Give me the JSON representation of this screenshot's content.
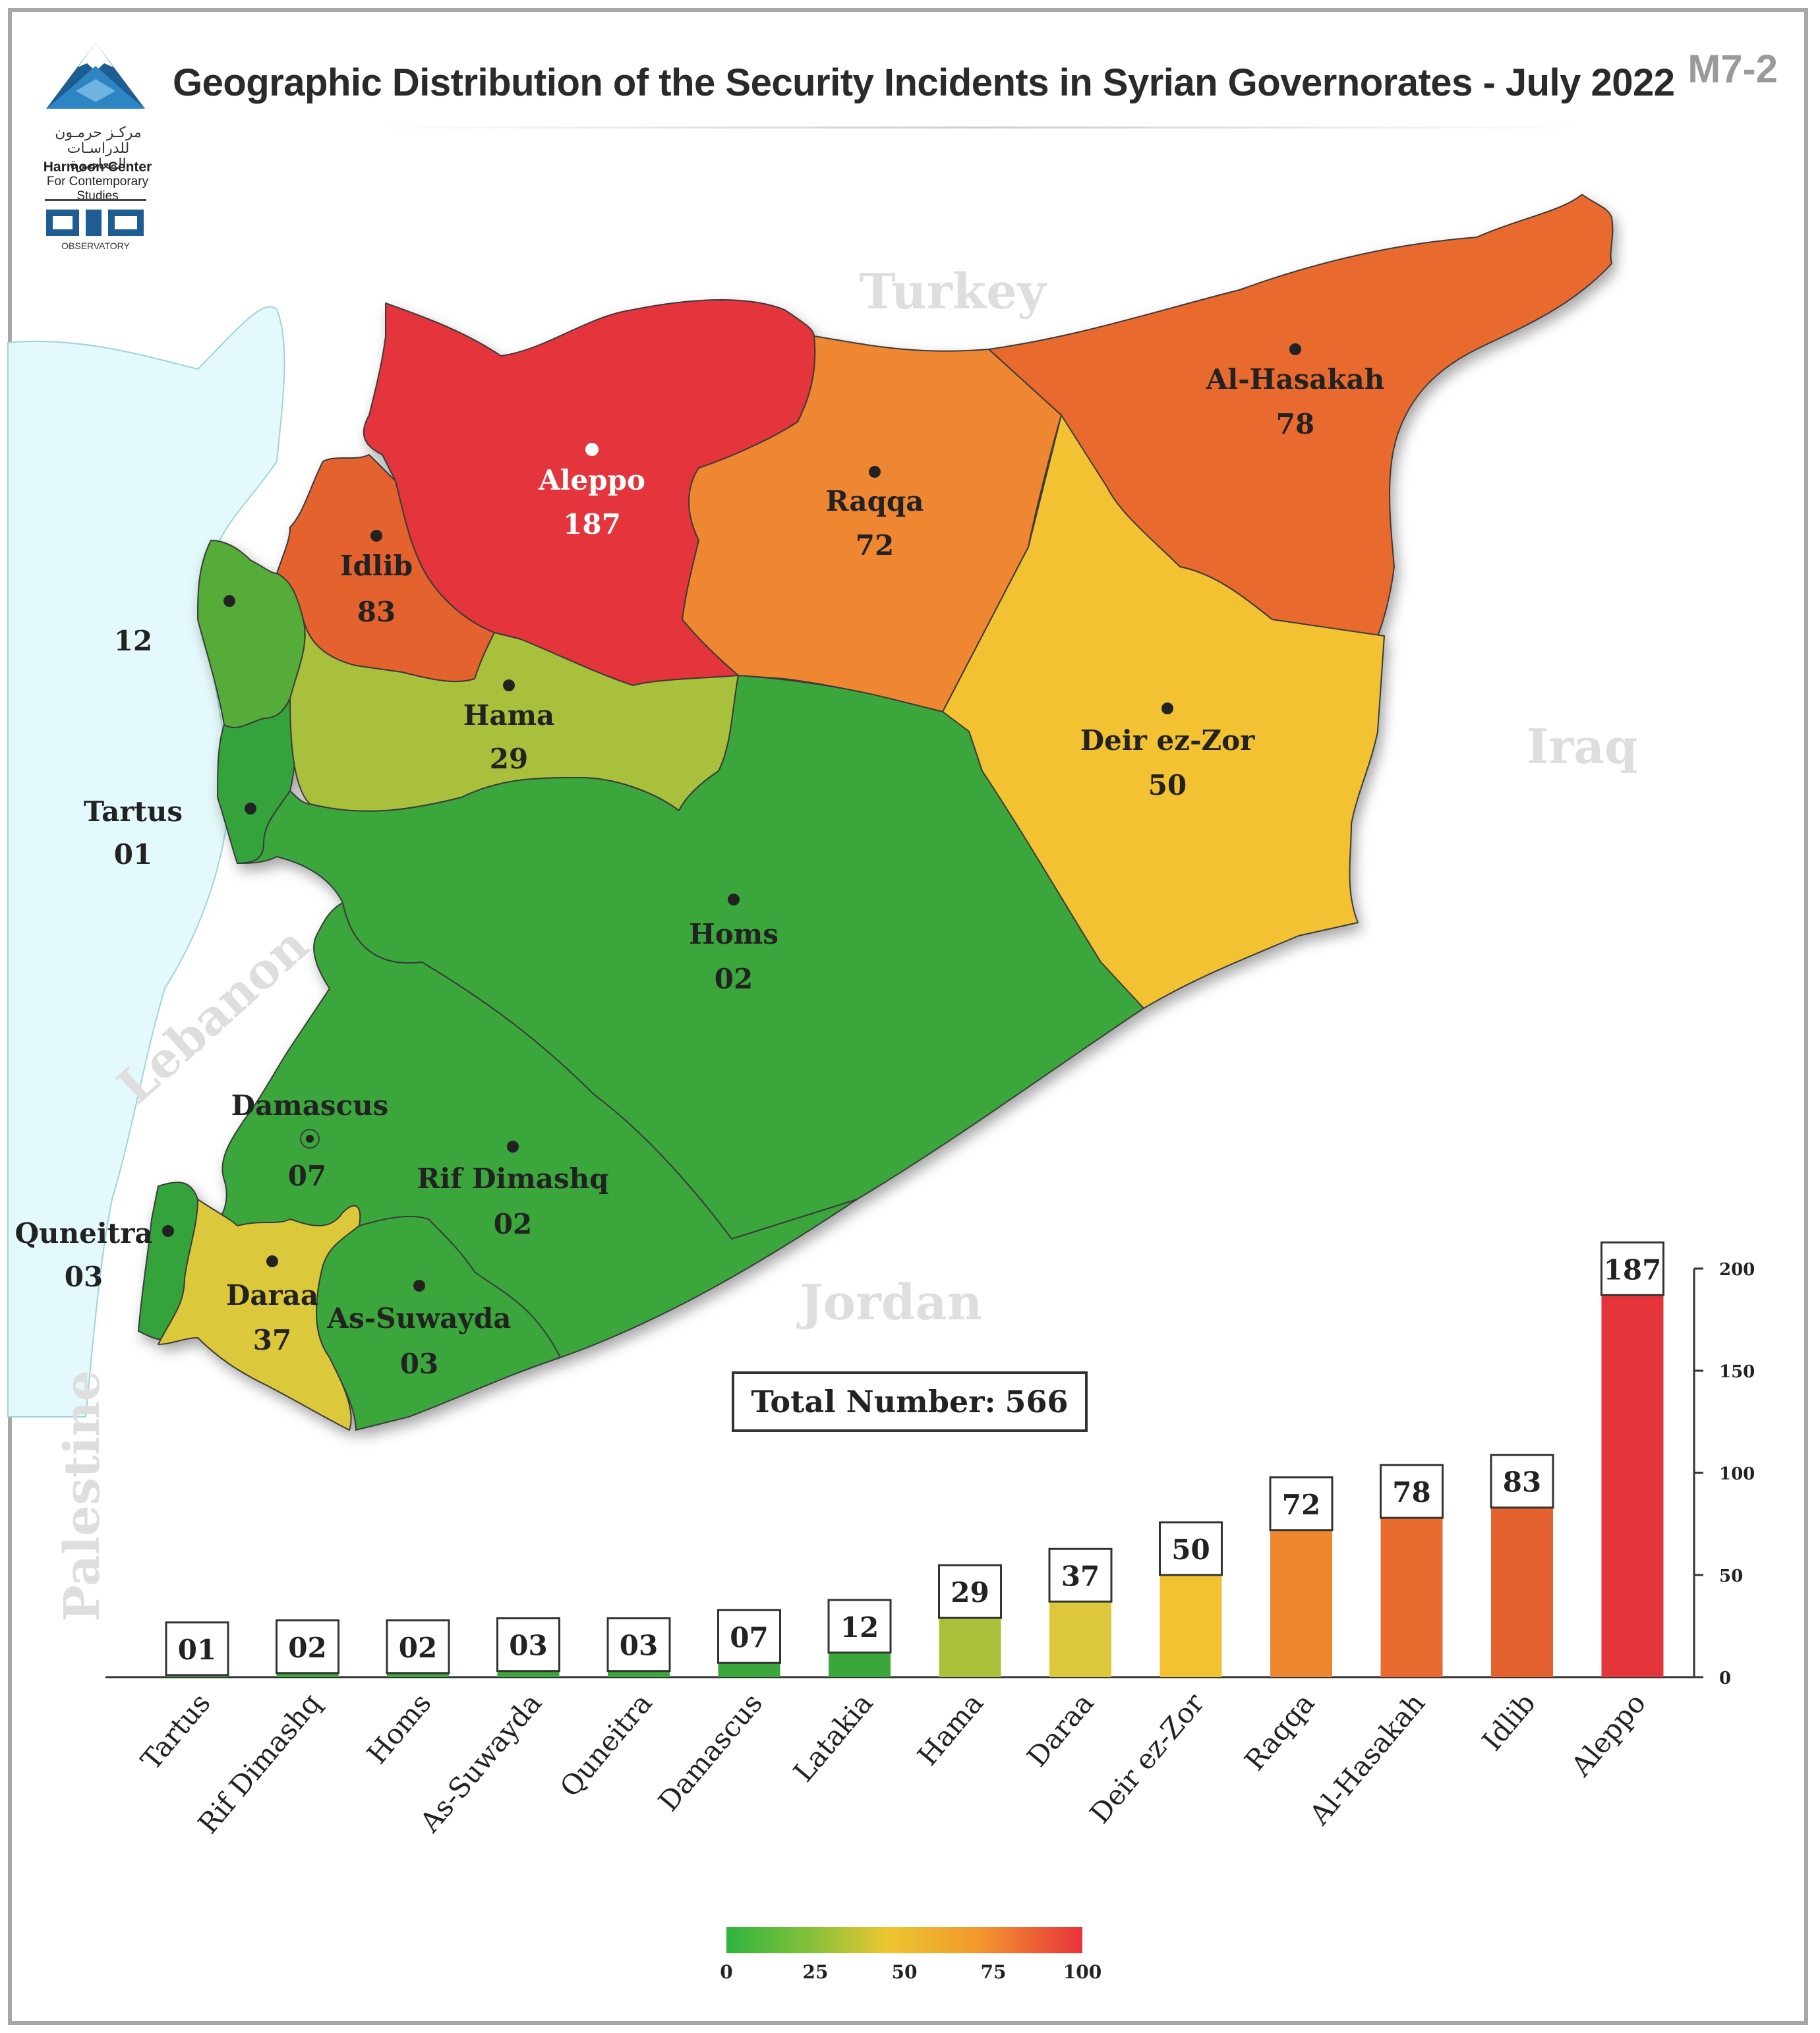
{
  "header": {
    "title": "Geographic Distribution of the Security Incidents in Syrian Governorates - July 2022",
    "code": "M7-2",
    "logo_arabic_1": "مركـز حرمـون",
    "logo_arabic_2": "للدراسـات المعاصرة",
    "logo_english_1": "Harmoon Center",
    "logo_english_2": "For Contemporary Studies",
    "observatory_label": "OBSERVATORY"
  },
  "countries": {
    "turkey": "Turkey",
    "iraq": "Iraq",
    "jordan": "Jordan",
    "lebanon": "Lebanon",
    "palestine": "Palestine"
  },
  "governorates": [
    {
      "name": "Aleppo",
      "value": "187",
      "color": "#e3353a"
    },
    {
      "name": "Raqqa",
      "value": "72",
      "color": "#ee8630"
    },
    {
      "name": "Al-Hasakah",
      "value": "78",
      "color": "#e86b2f"
    },
    {
      "name": "Idlib",
      "value": "83",
      "color": "#e3622f"
    },
    {
      "name": "Hama",
      "value": "29",
      "color": "#a8c03a"
    },
    {
      "name": "Deir ez-Zor",
      "value": "50",
      "color": "#f2c233"
    },
    {
      "name": "Homs",
      "value": "02",
      "color": "#3aa63b"
    },
    {
      "name": "Tartus",
      "value": "01",
      "color": "#35a33b"
    },
    {
      "name": "",
      "value": "12",
      "color": "#56ac39"
    },
    {
      "name": "Damascus",
      "value": "07",
      "color": "#3aa63b"
    },
    {
      "name": "Rif Dimashq",
      "value": "02",
      "color": "#3aa63b"
    },
    {
      "name": "Quneitra",
      "value": "03",
      "color": "#35a33b"
    },
    {
      "name": "Daraa",
      "value": "37",
      "color": "#dcc83a"
    },
    {
      "name": "As-Suwayda",
      "value": "03",
      "color": "#3aa63b"
    }
  ],
  "total": {
    "label": "Total Number:",
    "value": "566"
  },
  "chart_data": {
    "type": "bar",
    "categories": [
      "Tartus",
      "Rif Dimashq",
      "Homs",
      "As-Suwayda",
      "Quneitra",
      "Damascus",
      "Latakia",
      "Hama",
      "Daraa",
      "Deir ez-Zor",
      "Raqqa",
      "Al-Hasakah",
      "Idlib",
      "Aleppo"
    ],
    "values": [
      1,
      2,
      2,
      3,
      3,
      7,
      12,
      29,
      37,
      50,
      72,
      78,
      83,
      187
    ],
    "value_labels": [
      "01",
      "02",
      "02",
      "03",
      "03",
      "07",
      "12",
      "29",
      "37",
      "50",
      "72",
      "78",
      "83",
      "187"
    ],
    "colors": [
      "#3aa63b",
      "#3aa63b",
      "#3aa63b",
      "#3aa63b",
      "#3aa63b",
      "#3aa63b",
      "#3aa63b",
      "#a8c03a",
      "#dcc83a",
      "#f2c233",
      "#ee8630",
      "#e86b2f",
      "#e3622f",
      "#e3353a"
    ],
    "ylim": [
      0,
      200
    ],
    "yticks": [
      "0",
      "50",
      "100",
      "150",
      "200"
    ],
    "ytick_values": [
      0,
      50,
      100,
      150,
      200
    ],
    "axis_side": "right"
  },
  "color_scale": {
    "ticks": [
      "0",
      "25",
      "50",
      "75",
      "100"
    ],
    "tick_values": [
      0,
      25,
      50,
      75,
      100
    ],
    "colors": [
      "#2fb340",
      "#8ac23a",
      "#ecc631",
      "#f39a2e",
      "#e8333b"
    ]
  }
}
